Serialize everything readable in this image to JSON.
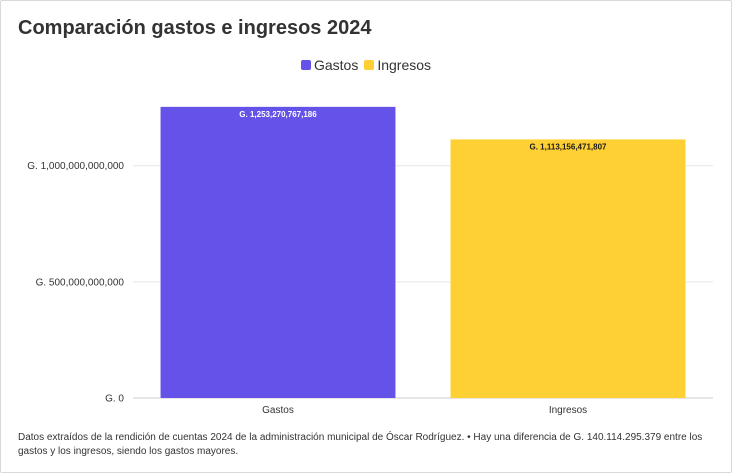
{
  "title": "Comparación gastos e ingresos 2024",
  "note": "Datos extraídos de la rendición de cuentas 2024 de la administración municipal de Óscar Rodríguez. • Hay una diferencia de G. 140.114.295.379 entre los gastos y los ingresos, siendo los gastos mayores.",
  "colors": {
    "gastos": "#6552e9",
    "ingresos": "#ffd033",
    "grid": "#e6e6e6"
  },
  "chart_data": {
    "type": "bar",
    "title": "Comparación gastos e ingresos 2024",
    "categories": [
      "Gastos",
      "Ingresos"
    ],
    "series": [
      {
        "name": "Gastos",
        "values": [
          1253270767186,
          null
        ]
      },
      {
        "name": "Ingresos",
        "values": [
          null,
          1113156471807
        ]
      }
    ],
    "values": [
      1253270767186,
      1113156471807
    ],
    "data_labels": [
      "G. 1,253,270,767,186",
      "G. 1,113,156,471,807"
    ],
    "y_ticks": [
      0,
      500000000000,
      1000000000000
    ],
    "y_tick_labels": [
      "G. 0",
      "G. 500,000,000,000",
      "G. 1,000,000,000,000"
    ],
    "ylim": [
      0,
      1300000000000
    ],
    "legend": [
      "Gastos",
      "Ingresos"
    ],
    "legend_position": "top-center",
    "grid": true
  }
}
